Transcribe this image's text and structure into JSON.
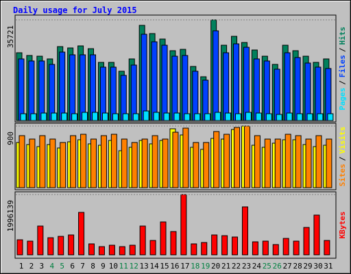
{
  "title": "Daily usage for July 2015",
  "legend_separator": "/",
  "chart_data": [
    {
      "type": "bar",
      "series": [
        {
          "name": "Pages",
          "color": "#00e0ff",
          "values": [
            2430,
            2430,
            2670,
            2670,
            2670,
            2430,
            2920,
            2920,
            2670,
            2430,
            2430,
            2430,
            3400,
            2920,
            2670,
            2670,
            2430,
            2430,
            2430,
            2920,
            2670,
            2430,
            2920,
            2670,
            2430,
            2190,
            2670,
            2430,
            2430,
            2430,
            2430
          ]
        },
        {
          "name": "Files",
          "color": "#0040ff",
          "values": [
            21870,
            21140,
            21140,
            19930,
            24300,
            23330,
            23330,
            23330,
            18960,
            18960,
            16040,
            19690,
            30620,
            27950,
            26730,
            22840,
            23090,
            17500,
            14340,
            31840,
            24060,
            27220,
            26000,
            21870,
            21140,
            18230,
            24060,
            22360,
            20410,
            18960,
            18470
          ]
        },
        {
          "name": "Hits",
          "color": "#00805c",
          "values": [
            24060,
            23090,
            22840,
            21870,
            26240,
            25760,
            26490,
            25510,
            20650,
            20650,
            17500,
            21870,
            33780,
            30860,
            28920,
            24790,
            25270,
            19200,
            15550,
            35721,
            26730,
            29890,
            27700,
            25030,
            22840,
            19930,
            26730,
            24790,
            22840,
            20650,
            21870
          ]
        }
      ],
      "ylim": [
        0,
        35721
      ],
      "yticks": [
        35721
      ]
    },
    {
      "type": "bar",
      "series": [
        {
          "name": "Sites",
          "color": "#ff8000",
          "values": [
            760,
            710,
            760,
            710,
            660,
            760,
            780,
            710,
            760,
            780,
            710,
            660,
            710,
            760,
            710,
            810,
            870,
            660,
            660,
            820,
            780,
            880,
            900,
            760,
            710,
            710,
            780,
            760,
            710,
            760,
            710
          ]
        },
        {
          "name": "Visits",
          "color": "#ffff00",
          "values": [
            660,
            630,
            600,
            630,
            580,
            670,
            700,
            640,
            620,
            690,
            540,
            590,
            690,
            640,
            690,
            860,
            770,
            590,
            560,
            720,
            710,
            850,
            900,
            620,
            590,
            650,
            700,
            700,
            630,
            600,
            620
          ]
        }
      ],
      "ylim": [
        0,
        900
      ],
      "yticks": [
        900
      ]
    },
    {
      "type": "bar",
      "categories": [
        "1",
        "2",
        "3",
        "4",
        "5",
        "6",
        "7",
        "8",
        "9",
        "10",
        "11",
        "12",
        "13",
        "14",
        "15",
        "16",
        "17",
        "18",
        "19",
        "20",
        "21",
        "22",
        "23",
        "24",
        "25",
        "26",
        "27",
        "28",
        "29",
        "30",
        "31"
      ],
      "x_label_colors": [
        "#000000",
        "#000000",
        "#000000",
        "#008040",
        "#008040",
        "#000000",
        "#000000",
        "#000000",
        "#000000",
        "#000000",
        "#008040",
        "#008040",
        "#000000",
        "#000000",
        "#000000",
        "#000000",
        "#000000",
        "#008040",
        "#008040",
        "#000000",
        "#000000",
        "#000000",
        "#000000",
        "#000000",
        "#008040",
        "#008040",
        "#000000",
        "#000000",
        "#000000",
        "#000000",
        "#000000"
      ],
      "series": [
        {
          "name": "KBytes",
          "color": "#ff0000",
          "values": [
            499000,
            454000,
            953000,
            567000,
            612000,
            658000,
            1406000,
            363000,
            272000,
            318000,
            272000,
            318000,
            953000,
            476000,
            1089000,
            771000,
            1996139,
            363000,
            408000,
            658000,
            635000,
            590000,
            1588000,
            431000,
            454000,
            340000,
            544000,
            454000,
            907000,
            1316000,
            476000
          ]
        }
      ],
      "ylim": [
        0,
        1996139
      ],
      "yticks": [
        1996139
      ]
    }
  ]
}
